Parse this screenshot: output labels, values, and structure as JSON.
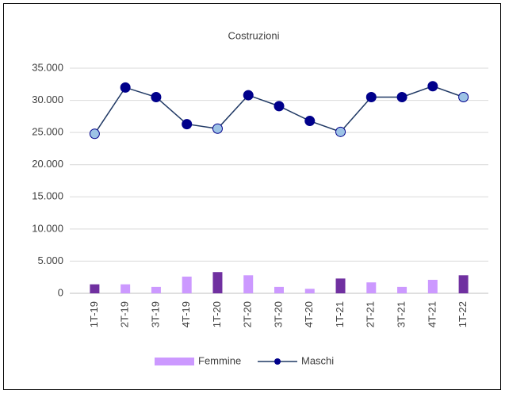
{
  "chart_data": {
    "type": "bar+line",
    "title": "Costruzioni",
    "categories": [
      "1T-19",
      "2T-19",
      "3T-19",
      "4T-19",
      "1T-20",
      "2T-20",
      "3T-20",
      "4T-20",
      "1T-21",
      "2T-21",
      "3T-21",
      "4T-21",
      "1T-22"
    ],
    "series": [
      {
        "name": "Femmine",
        "type": "bar",
        "color": "#cc99ff",
        "colors": [
          "#7030a0",
          "#cc99ff",
          "#cc99ff",
          "#cc99ff",
          "#7030a0",
          "#cc99ff",
          "#cc99ff",
          "#cc99ff",
          "#7030a0",
          "#cc99ff",
          "#cc99ff",
          "#cc99ff",
          "#7030a0"
        ],
        "values": [
          1400,
          1400,
          1000,
          2600,
          3300,
          2800,
          1000,
          700,
          2300,
          1700,
          1000,
          2100,
          2800
        ]
      },
      {
        "name": "Maschi",
        "type": "line",
        "color": "#1f3864",
        "marker_color": "#00008b",
        "colors": [
          "#9dc3e6",
          "#00008b",
          "#00008b",
          "#00008b",
          "#9dc3e6",
          "#00008b",
          "#00008b",
          "#00008b",
          "#9dc3e6",
          "#00008b",
          "#00008b",
          "#00008b",
          "#9dc3e6"
        ],
        "values": [
          24800,
          32000,
          30500,
          26300,
          25600,
          30800,
          29100,
          26800,
          25100,
          30500,
          30500,
          32200,
          30500
        ]
      }
    ],
    "ylim": [
      0,
      35000
    ],
    "yticks": [
      0,
      {
        "value": 5000,
        "label": "5.000"
      },
      {
        "value": 10000,
        "label": "10.000"
      },
      {
        "value": 15000,
        "label": "15.000"
      },
      {
        "value": 20000,
        "label": "20.000"
      },
      {
        "value": 25000,
        "label": "25.000"
      },
      {
        "value": 30000,
        "label": "30.000"
      },
      {
        "value": 35000,
        "label": "35.000"
      }
    ],
    "grid": true,
    "legend": "bottom"
  }
}
